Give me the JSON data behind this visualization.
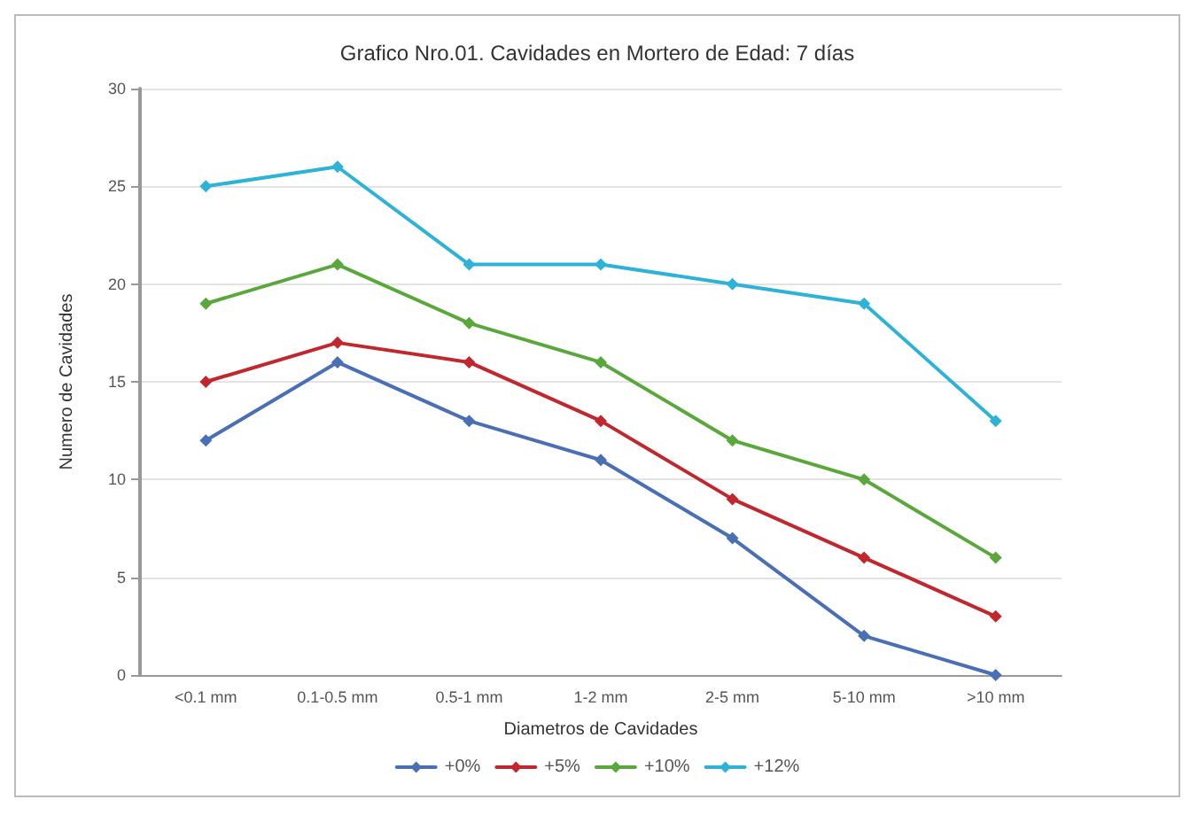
{
  "chart_data": {
    "type": "line",
    "title": "Grafico Nro.01. Cavidades en Mortero de Edad: 7 días",
    "xlabel": "Diametros de Cavidades",
    "ylabel": "Numero de Cavidades",
    "categories": [
      "<0.1 mm",
      "0.1-0.5 mm",
      "0.5-1 mm",
      "1-2 mm",
      "2-5 mm",
      "5-10 mm",
      ">10 mm"
    ],
    "series": [
      {
        "name": "+0%",
        "color": "#4a6fb5",
        "values": [
          12,
          16,
          13,
          11,
          7,
          2,
          0
        ]
      },
      {
        "name": "+5%",
        "color": "#c0282d",
        "values": [
          15,
          17,
          16,
          13,
          9,
          6,
          3
        ]
      },
      {
        "name": "+10%",
        "color": "#5aa83c",
        "values": [
          19,
          21,
          18,
          16,
          12,
          10,
          6
        ]
      },
      {
        "name": "+12%",
        "color": "#2eb3d6",
        "values": [
          25,
          26,
          21,
          21,
          20,
          19,
          13
        ]
      }
    ],
    "ylim": [
      0,
      30
    ],
    "yticks": [
      0,
      5,
      10,
      15,
      20,
      25,
      30
    ],
    "grid": "y",
    "legend": "bottom",
    "marker": "diamond",
    "line_style": "solid"
  }
}
